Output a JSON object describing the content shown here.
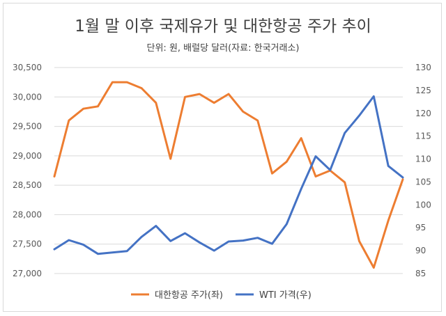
{
  "chart_data": {
    "type": "line",
    "title": "1월 말 이후 국제유가 및 대한항공 주가 추이",
    "subtitle": "단위: 원, 배럴당 달러(자료: 한국거래소)",
    "axes": {
      "left": {
        "min": 27000,
        "max": 30500,
        "ticks": [
          "27,000",
          "27,500",
          "28,000",
          "28,500",
          "29,000",
          "29,500",
          "30,000",
          "30,500"
        ],
        "tick_values": [
          27000,
          27500,
          28000,
          28500,
          29000,
          29500,
          30000,
          30500
        ]
      },
      "right": {
        "min": 85,
        "max": 130,
        "ticks": [
          "85",
          "90",
          "95",
          "100",
          "105",
          "110",
          "115",
          "120",
          "125",
          "130"
        ],
        "tick_values": [
          85,
          90,
          95,
          100,
          105,
          110,
          115,
          120,
          125,
          130
        ]
      }
    },
    "grid": true,
    "legend_position": "bottom",
    "series": [
      {
        "name": "대한항공 주가(좌)",
        "axis": "left",
        "color": "#ed7d31",
        "values": [
          28650,
          29600,
          29800,
          29840,
          30250,
          30250,
          30150,
          29900,
          28950,
          30000,
          30050,
          29900,
          30050,
          29750,
          29600,
          28700,
          28900,
          29300,
          28650,
          28750,
          28550,
          27550,
          27100,
          27900,
          28600
        ]
      },
      {
        "name": "WTI 가격(우)",
        "axis": "right",
        "color": "#4472c4",
        "values": [
          90.3,
          92.3,
          91.3,
          89.3,
          89.6,
          89.9,
          93.0,
          95.4,
          92.1,
          93.8,
          91.8,
          90.0,
          92.0,
          92.2,
          92.8,
          91.5,
          95.8,
          103.5,
          110.6,
          107.6,
          115.7,
          119.5,
          123.7,
          108.5,
          106.0
        ]
      }
    ]
  }
}
